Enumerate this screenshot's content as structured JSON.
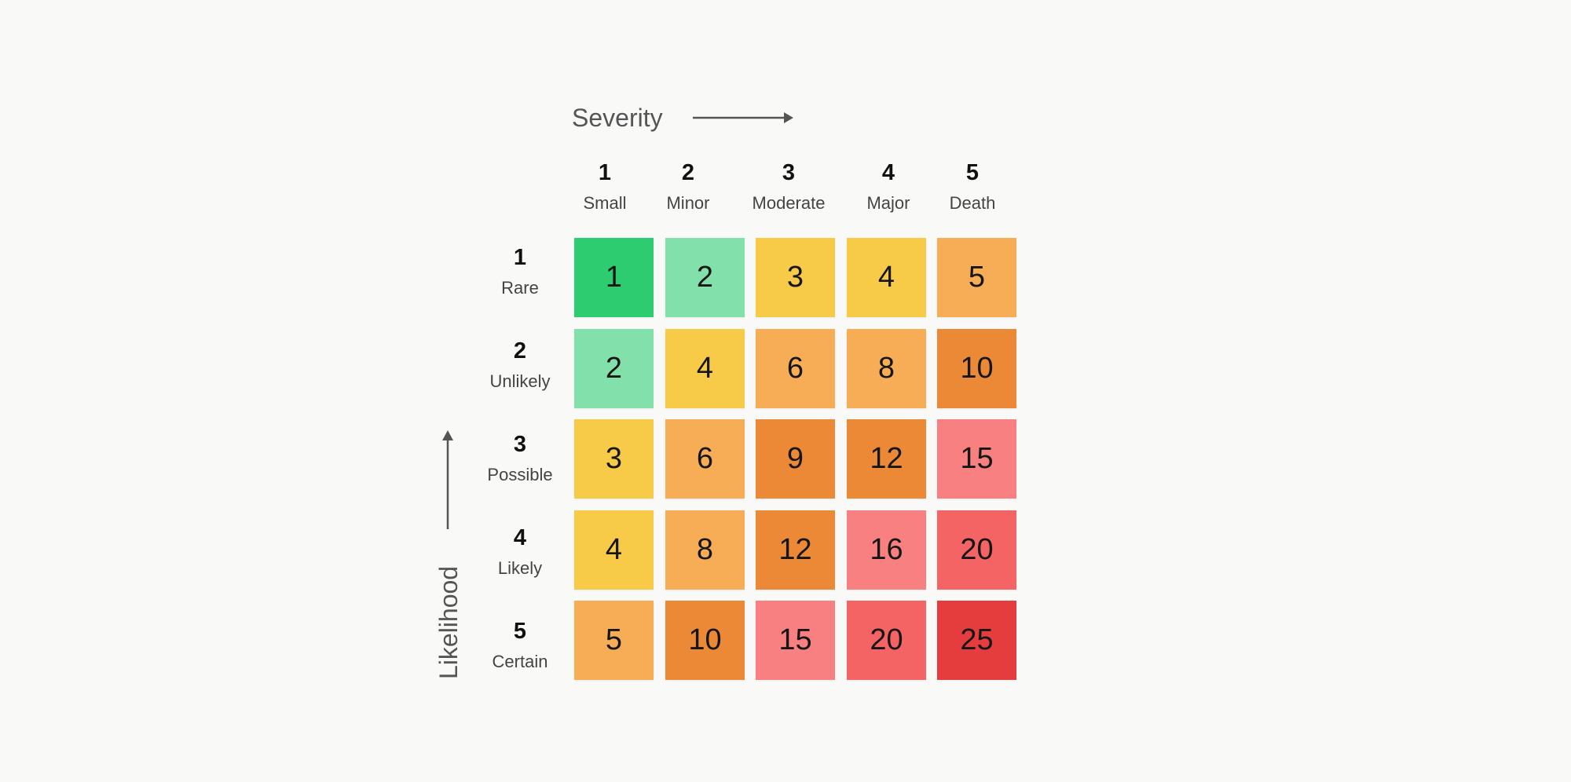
{
  "severity_title": "Severity",
  "likelihood_title": "Likelihood",
  "severity_levels": [
    {
      "num": "1",
      "label": "Small"
    },
    {
      "num": "2",
      "label": "Minor"
    },
    {
      "num": "3",
      "label": "Moderate"
    },
    {
      "num": "4",
      "label": "Major"
    },
    {
      "num": "5",
      "label": "Death"
    }
  ],
  "likelihood_levels": [
    {
      "num": "1",
      "label": "Rare"
    },
    {
      "num": "2",
      "label": "Unlikely"
    },
    {
      "num": "3",
      "label": "Possible"
    },
    {
      "num": "4",
      "label": "Likely"
    },
    {
      "num": "5",
      "label": "Certain"
    }
  ],
  "matrix": [
    [
      "1",
      "2",
      "3",
      "4",
      "5"
    ],
    [
      "2",
      "4",
      "6",
      "8",
      "10"
    ],
    [
      "3",
      "6",
      "9",
      "12",
      "15"
    ],
    [
      "4",
      "8",
      "12",
      "16",
      "20"
    ],
    [
      "5",
      "10",
      "15",
      "20",
      "25"
    ]
  ],
  "score_colors": {
    "1": "#2ecc71",
    "2": "#82e0aa",
    "3": "#f7ca48",
    "4": "#f7ca48",
    "5": "#f6ad56",
    "6": "#f6ad56",
    "8": "#f6ad56",
    "9": "#ec8937",
    "10": "#ec8937",
    "12": "#ec8937",
    "15": "#f98080",
    "16": "#f98080",
    "20": "#f46464",
    "25": "#e53d3d"
  },
  "arrow_color": "#555555"
}
